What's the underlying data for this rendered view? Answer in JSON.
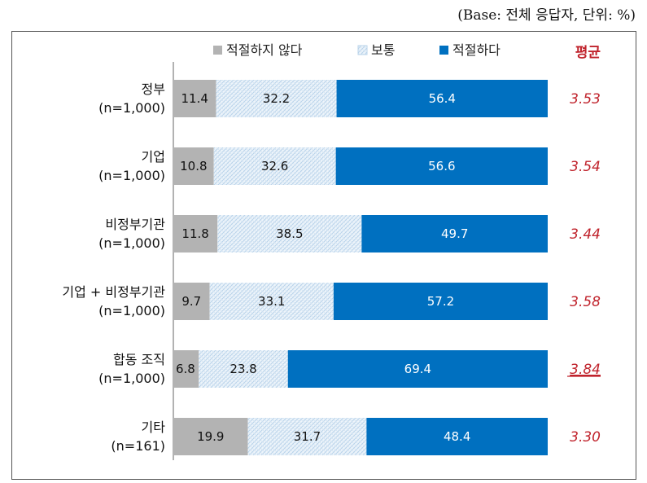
{
  "base_note": "(Base: 전체 응답자, 단위: %)",
  "colors": {
    "not_appropriate": "#b3b3b3",
    "neutral_bg": "#eef5fb",
    "neutral_pattern": "#b9d3ea",
    "appropriate": "#0070c0",
    "average": "#c0232c"
  },
  "chart_data": {
    "type": "bar",
    "orientation": "horizontal-stacked-100",
    "series": [
      {
        "name": "적절하지 않다",
        "values": [
          11.4,
          10.8,
          11.8,
          9.7,
          6.8,
          19.9
        ]
      },
      {
        "name": "보통",
        "values": [
          32.2,
          32.6,
          38.5,
          33.1,
          23.8,
          31.7
        ]
      },
      {
        "name": "적절하다",
        "values": [
          56.4,
          56.6,
          49.7,
          57.2,
          69.4,
          48.4
        ]
      }
    ],
    "categories": [
      {
        "name": "정부",
        "n": "(n=1,000)"
      },
      {
        "name": "기업",
        "n": "(n=1,000)"
      },
      {
        "name": "비정부기관",
        "n": "(n=1,000)"
      },
      {
        "name": "기업 + 비정부기관",
        "n": "(n=1,000)"
      },
      {
        "name": "합동 조직",
        "n": "(n=1,000)"
      },
      {
        "name": "기타",
        "n": "(n=161)"
      }
    ],
    "average_header": "평균",
    "averages": [
      "3.53",
      "3.54",
      "3.44",
      "3.58",
      "3.84",
      "3.30"
    ],
    "highlighted_average_index": 4,
    "xlim": [
      0,
      100
    ],
    "legend_position": "top"
  }
}
